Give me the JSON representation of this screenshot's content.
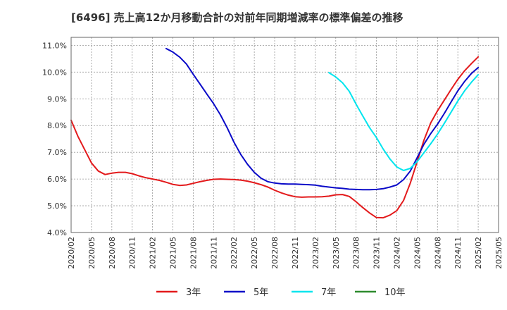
{
  "chart_data": {
    "type": "line",
    "title": "[6496]  売上高12か月移動合計の対前年同期増減率の標準偏差の推移",
    "xlabel": "",
    "ylabel": "",
    "ylim": [
      4.0,
      11.3
    ],
    "yticks": [
      4.0,
      5.0,
      6.0,
      7.0,
      8.0,
      9.0,
      10.0,
      11.0
    ],
    "ytick_labels": [
      "4.0%",
      "5.0%",
      "6.0%",
      "7.0%",
      "8.0%",
      "9.0%",
      "10.0%",
      "11.0%"
    ],
    "xticks": [
      "2020/02",
      "2020/05",
      "2020/08",
      "2020/11",
      "2021/02",
      "2021/05",
      "2021/08",
      "2021/11",
      "2022/02",
      "2022/05",
      "2022/08",
      "2022/11",
      "2023/02",
      "2023/05",
      "2023/08",
      "2023/11",
      "2024/02",
      "2024/05",
      "2024/08",
      "2024/11",
      "2025/02",
      "2025/05"
    ],
    "series": [
      {
        "name": "3年",
        "color": "#e31a1c",
        "values": [
          [
            "2020/02",
            8.2
          ],
          [
            "2020/03",
            7.6
          ],
          [
            "2020/04",
            7.1
          ],
          [
            "2020/05",
            6.6
          ],
          [
            "2020/06",
            6.3
          ],
          [
            "2020/07",
            6.17
          ],
          [
            "2020/08",
            6.22
          ],
          [
            "2020/09",
            6.25
          ],
          [
            "2020/10",
            6.25
          ],
          [
            "2020/11",
            6.2
          ],
          [
            "2020/12",
            6.12
          ],
          [
            "2021/01",
            6.05
          ],
          [
            "2021/02",
            6.0
          ],
          [
            "2021/03",
            5.95
          ],
          [
            "2021/04",
            5.88
          ],
          [
            "2021/05",
            5.8
          ],
          [
            "2021/06",
            5.76
          ],
          [
            "2021/07",
            5.78
          ],
          [
            "2021/08",
            5.84
          ],
          [
            "2021/09",
            5.9
          ],
          [
            "2021/10",
            5.95
          ],
          [
            "2021/11",
            5.99
          ],
          [
            "2021/12",
            6.0
          ],
          [
            "2022/01",
            5.99
          ],
          [
            "2022/02",
            5.98
          ],
          [
            "2022/03",
            5.96
          ],
          [
            "2022/04",
            5.92
          ],
          [
            "2022/05",
            5.86
          ],
          [
            "2022/06",
            5.79
          ],
          [
            "2022/07",
            5.7
          ],
          [
            "2022/08",
            5.58
          ],
          [
            "2022/09",
            5.48
          ],
          [
            "2022/10",
            5.4
          ],
          [
            "2022/11",
            5.34
          ],
          [
            "2022/12",
            5.32
          ],
          [
            "2023/01",
            5.33
          ],
          [
            "2023/02",
            5.33
          ],
          [
            "2023/03",
            5.34
          ],
          [
            "2023/04",
            5.36
          ],
          [
            "2023/05",
            5.41
          ],
          [
            "2023/06",
            5.42
          ],
          [
            "2023/07",
            5.35
          ],
          [
            "2023/08",
            5.15
          ],
          [
            "2023/09",
            4.93
          ],
          [
            "2023/10",
            4.73
          ],
          [
            "2023/11",
            4.56
          ],
          [
            "2023/12",
            4.55
          ],
          [
            "2024/01",
            4.65
          ],
          [
            "2024/02",
            4.82
          ],
          [
            "2024/03",
            5.2
          ],
          [
            "2024/04",
            5.85
          ],
          [
            "2024/05",
            6.65
          ],
          [
            "2024/06",
            7.45
          ],
          [
            "2024/07",
            8.1
          ],
          [
            "2024/08",
            8.55
          ],
          [
            "2024/09",
            8.95
          ],
          [
            "2024/10",
            9.35
          ],
          [
            "2024/11",
            9.73
          ],
          [
            "2024/12",
            10.05
          ],
          [
            "2025/01",
            10.32
          ],
          [
            "2025/02",
            10.57
          ]
        ]
      },
      {
        "name": "5年",
        "color": "#0a0ac8",
        "values": [
          [
            "2021/04",
            10.88
          ],
          [
            "2021/05",
            10.75
          ],
          [
            "2021/06",
            10.56
          ],
          [
            "2021/07",
            10.3
          ],
          [
            "2021/08",
            9.92
          ],
          [
            "2021/09",
            9.55
          ],
          [
            "2021/10",
            9.18
          ],
          [
            "2021/11",
            8.82
          ],
          [
            "2021/12",
            8.4
          ],
          [
            "2022/01",
            7.92
          ],
          [
            "2022/02",
            7.38
          ],
          [
            "2022/03",
            6.92
          ],
          [
            "2022/04",
            6.55
          ],
          [
            "2022/05",
            6.25
          ],
          [
            "2022/06",
            6.03
          ],
          [
            "2022/07",
            5.9
          ],
          [
            "2022/08",
            5.85
          ],
          [
            "2022/09",
            5.82
          ],
          [
            "2022/10",
            5.81
          ],
          [
            "2022/11",
            5.81
          ],
          [
            "2022/12",
            5.8
          ],
          [
            "2023/01",
            5.79
          ],
          [
            "2023/02",
            5.77
          ],
          [
            "2023/03",
            5.73
          ],
          [
            "2023/04",
            5.7
          ],
          [
            "2023/05",
            5.67
          ],
          [
            "2023/06",
            5.65
          ],
          [
            "2023/07",
            5.62
          ],
          [
            "2023/08",
            5.61
          ],
          [
            "2023/09",
            5.6
          ],
          [
            "2023/10",
            5.6
          ],
          [
            "2023/11",
            5.61
          ],
          [
            "2023/12",
            5.64
          ],
          [
            "2024/01",
            5.7
          ],
          [
            "2024/02",
            5.78
          ],
          [
            "2024/03",
            5.98
          ],
          [
            "2024/04",
            6.3
          ],
          [
            "2024/05",
            6.8
          ],
          [
            "2024/06",
            7.3
          ],
          [
            "2024/07",
            7.7
          ],
          [
            "2024/08",
            8.05
          ],
          [
            "2024/09",
            8.45
          ],
          [
            "2024/10",
            8.88
          ],
          [
            "2024/11",
            9.3
          ],
          [
            "2024/12",
            9.65
          ],
          [
            "2025/01",
            9.95
          ],
          [
            "2025/02",
            10.17
          ]
        ]
      },
      {
        "name": "7年",
        "color": "#00e5ee",
        "values": [
          [
            "2023/04",
            9.98
          ],
          [
            "2023/05",
            9.82
          ],
          [
            "2023/06",
            9.6
          ],
          [
            "2023/07",
            9.28
          ],
          [
            "2023/08",
            8.8
          ],
          [
            "2023/09",
            8.35
          ],
          [
            "2023/10",
            7.92
          ],
          [
            "2023/11",
            7.55
          ],
          [
            "2023/12",
            7.12
          ],
          [
            "2024/01",
            6.75
          ],
          [
            "2024/02",
            6.45
          ],
          [
            "2024/03",
            6.32
          ],
          [
            "2024/04",
            6.4
          ],
          [
            "2024/05",
            6.65
          ],
          [
            "2024/06",
            6.98
          ],
          [
            "2024/07",
            7.32
          ],
          [
            "2024/08",
            7.68
          ],
          [
            "2024/09",
            8.08
          ],
          [
            "2024/10",
            8.5
          ],
          [
            "2024/11",
            8.92
          ],
          [
            "2024/12",
            9.3
          ],
          [
            "2025/01",
            9.62
          ],
          [
            "2025/02",
            9.9
          ]
        ]
      },
      {
        "name": "10年",
        "color": "#2e8b2e",
        "values": []
      }
    ],
    "legend_position": "bottom",
    "grid": true
  }
}
